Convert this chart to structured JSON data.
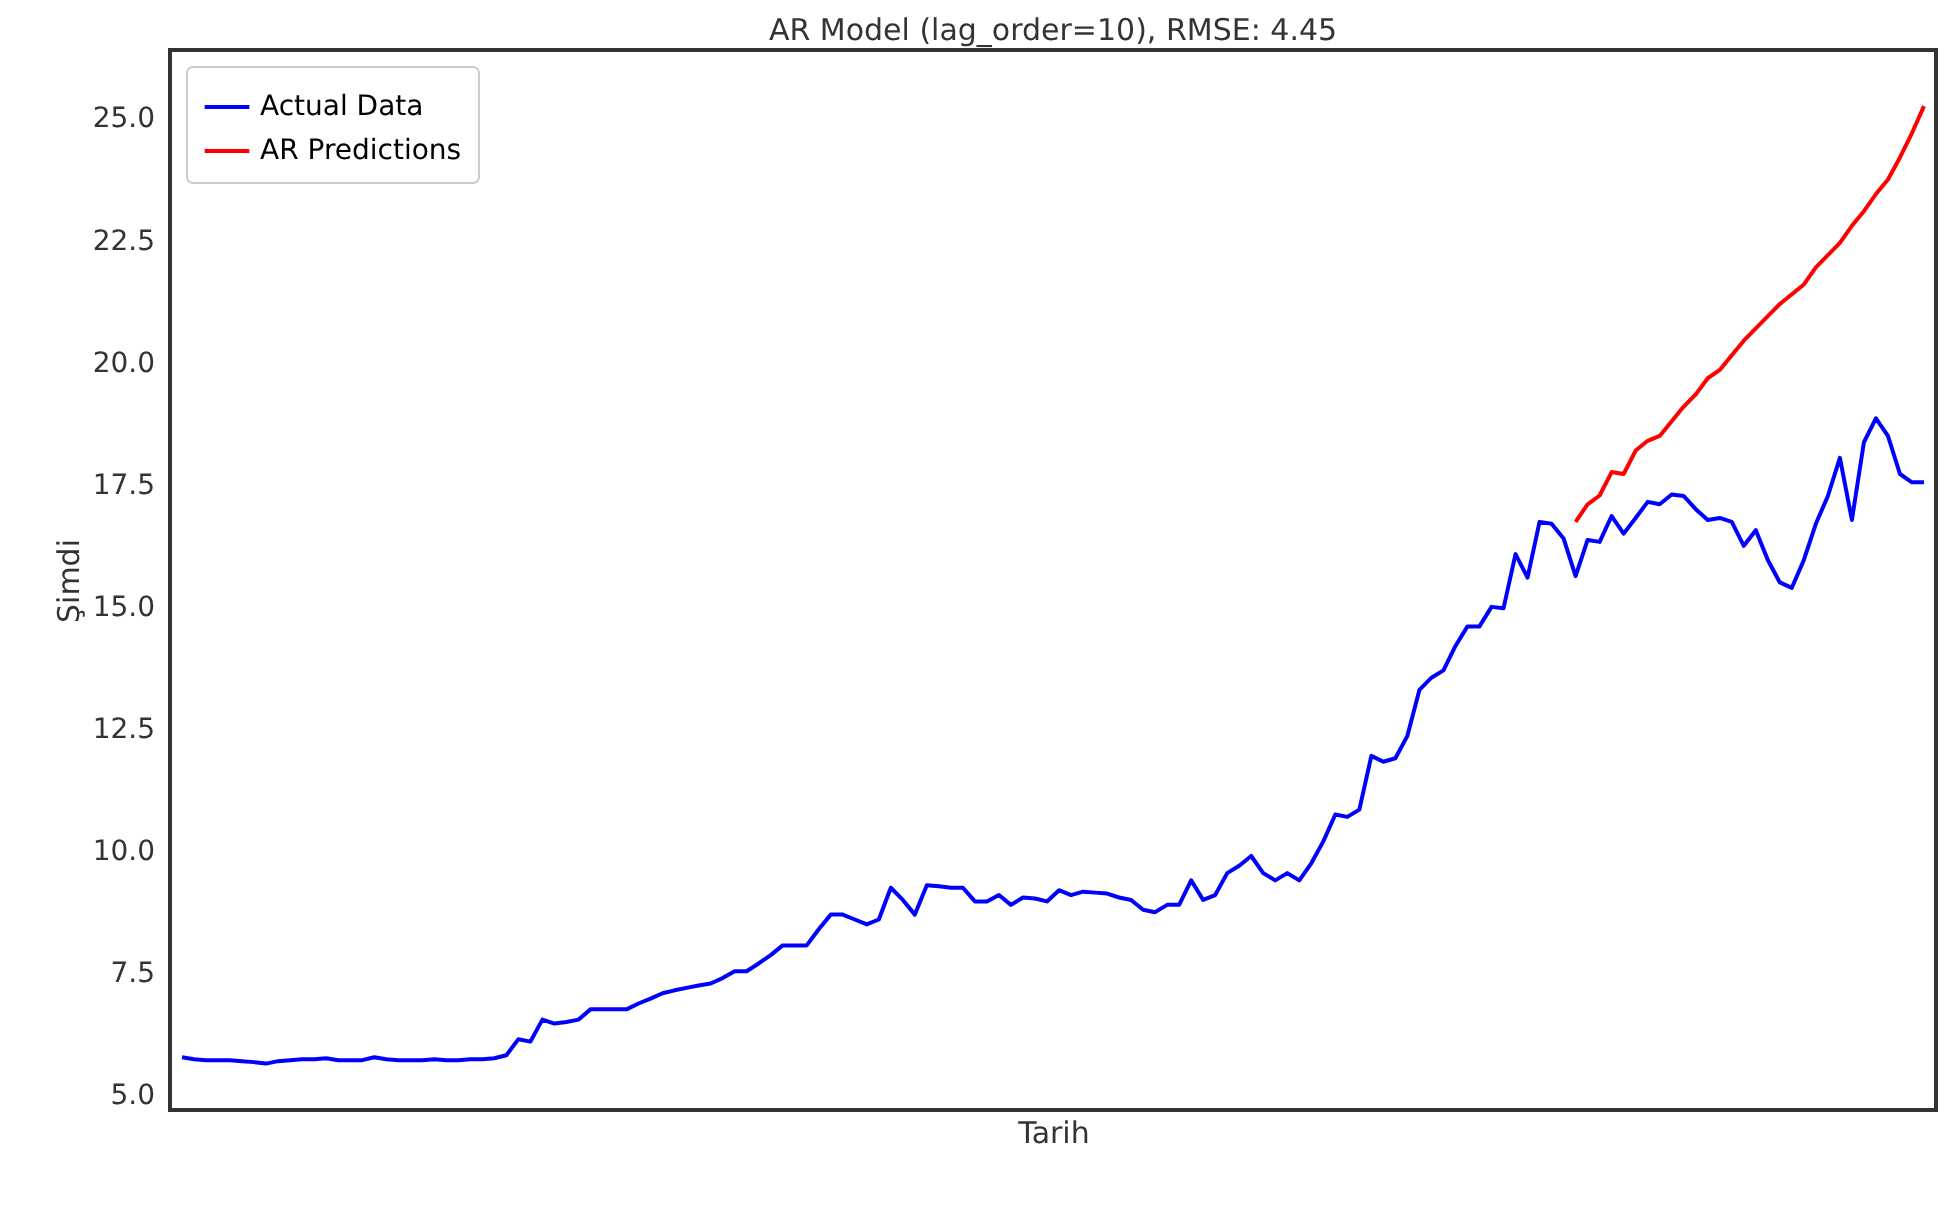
{
  "chart_data": {
    "type": "line",
    "title": "AR Model (lag_order=10), RMSE: 4.45",
    "xlabel": "Tarih",
    "ylabel": "Şimdi",
    "categories": [
      null,
      null,
      null,
      null,
      null,
      null,
      null,
      null,
      null,
      null,
      null,
      null,
      null,
      null,
      null,
      null,
      null,
      null,
      null,
      null,
      null,
      null,
      null,
      null,
      null,
      null,
      null,
      null,
      null,
      null,
      null,
      null,
      null,
      null,
      null,
      null,
      null,
      null,
      null,
      null,
      null,
      null,
      null,
      null,
      null,
      null,
      null,
      null,
      null,
      null,
      null,
      null,
      null,
      null,
      null,
      null,
      null,
      null,
      null,
      null,
      null,
      null,
      null,
      null,
      null,
      null,
      null,
      null,
      null,
      null,
      null,
      null,
      null,
      null,
      null,
      null,
      null,
      null,
      null,
      null,
      null,
      null,
      null,
      null,
      null,
      null,
      null,
      null,
      null,
      null,
      null,
      null,
      null,
      null,
      null,
      null,
      null,
      null,
      null,
      null,
      null,
      null,
      null,
      null,
      null,
      null,
      null,
      null,
      null,
      null,
      null,
      null,
      null,
      null,
      null,
      null,
      null,
      null,
      null,
      null,
      null,
      null,
      null,
      null,
      null,
      null,
      null,
      null,
      null,
      null,
      null,
      null,
      null,
      null,
      null,
      null,
      null,
      null,
      null,
      null,
      null,
      null,
      null,
      null,
      null,
      null
    ],
    "series": [
      {
        "name": "Actual Data",
        "color": "#0000ff",
        "values": [
          5.78,
          5.74,
          5.72,
          5.72,
          5.72,
          5.7,
          5.68,
          5.65,
          5.7,
          5.72,
          5.74,
          5.74,
          5.76,
          5.72,
          5.72,
          5.72,
          5.78,
          5.74,
          5.72,
          5.72,
          5.72,
          5.74,
          5.72,
          5.72,
          5.74,
          5.74,
          5.76,
          5.82,
          6.15,
          6.1,
          6.55,
          6.47,
          6.5,
          6.55,
          6.76,
          6.76,
          6.76,
          6.76,
          6.88,
          6.98,
          7.09,
          7.15,
          7.2,
          7.25,
          7.29,
          7.4,
          7.54,
          7.54,
          7.7,
          7.87,
          8.07,
          8.07,
          8.07,
          8.4,
          8.7,
          8.7,
          8.6,
          8.5,
          8.6,
          9.25,
          9.0,
          8.7,
          9.3,
          9.28,
          9.25,
          9.25,
          8.97,
          8.97,
          9.1,
          8.9,
          9.05,
          9.03,
          8.97,
          9.2,
          9.1,
          9.17,
          9.15,
          9.13,
          9.05,
          9.0,
          8.8,
          8.75,
          8.9,
          8.9,
          9.4,
          9.0,
          9.1,
          9.55,
          9.7,
          9.9,
          9.55,
          9.4,
          9.55,
          9.4,
          9.75,
          10.2,
          10.75,
          10.7,
          10.85,
          11.95,
          11.83,
          11.9,
          12.36,
          13.3,
          13.55,
          13.7,
          14.2,
          14.6,
          14.6,
          15.0,
          14.97,
          16.08,
          15.6,
          16.74,
          16.7,
          16.4,
          15.63,
          16.37,
          16.33,
          16.86,
          16.5,
          16.82,
          17.15,
          17.1,
          17.3,
          17.27,
          17.0,
          16.78,
          16.82,
          16.74,
          16.25,
          16.57,
          15.96,
          15.5,
          15.39,
          15.96,
          16.7,
          17.27,
          18.05,
          16.78,
          18.37,
          18.86,
          18.5,
          17.72,
          17.55,
          17.55
        ]
      },
      {
        "name": "AR Predictions",
        "color": "#ff0000",
        "values": [
          null,
          null,
          null,
          null,
          null,
          null,
          null,
          null,
          null,
          null,
          null,
          null,
          null,
          null,
          null,
          null,
          null,
          null,
          null,
          null,
          null,
          null,
          null,
          null,
          null,
          null,
          null,
          null,
          null,
          null,
          null,
          null,
          null,
          null,
          null,
          null,
          null,
          null,
          null,
          null,
          null,
          null,
          null,
          null,
          null,
          null,
          null,
          null,
          null,
          null,
          null,
          null,
          null,
          null,
          null,
          null,
          null,
          null,
          null,
          null,
          null,
          null,
          null,
          null,
          null,
          null,
          null,
          null,
          null,
          null,
          null,
          null,
          null,
          null,
          null,
          null,
          null,
          null,
          null,
          null,
          null,
          null,
          null,
          null,
          null,
          null,
          null,
          null,
          null,
          null,
          null,
          null,
          null,
          null,
          null,
          null,
          null,
          null,
          null,
          null,
          null,
          null,
          null,
          null,
          null,
          null,
          null,
          null,
          null,
          null,
          null,
          null,
          null,
          null,
          null,
          null,
          16.74,
          17.1,
          17.28,
          17.76,
          17.72,
          18.2,
          18.4,
          18.5,
          18.8,
          19.1,
          19.35,
          19.68,
          19.85,
          20.15,
          20.45,
          20.7,
          20.95,
          21.2,
          21.4,
          21.6,
          21.95,
          22.2,
          22.45,
          22.8,
          23.1,
          23.45,
          23.75,
          24.2,
          24.7,
          25.25
        ]
      }
    ],
    "ylim": [
      4.7,
      26.4
    ],
    "yticks": [
      {
        "value": 5,
        "label": "5.0"
      },
      7.5,
      {
        "value": 10,
        "label": "10.0"
      },
      12.5,
      {
        "value": 15,
        "label": "15.0"
      },
      17.5,
      {
        "value": 20,
        "label": "20.0"
      },
      22.5,
      {
        "value": 25,
        "label": "25.0"
      }
    ],
    "grid": false,
    "legend": "top left",
    "tick_labels": "y",
    "marker": "none",
    "line_style": "solid"
  }
}
